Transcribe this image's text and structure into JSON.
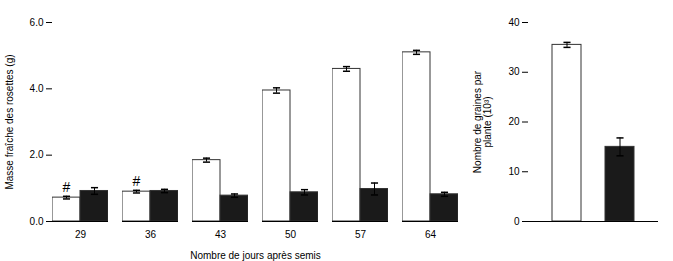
{
  "chart_data": [
    {
      "type": "bar",
      "xlabel": "Nombre de jours après semis",
      "ylabel": "Masse fraîche des rosettes (g)",
      "categories": [
        "29",
        "36",
        "43",
        "50",
        "57",
        "64"
      ],
      "series": [
        {
          "color": "white",
          "values": [
            0.72,
            0.9,
            1.85,
            3.95,
            4.6,
            5.1
          ],
          "errors": [
            0.04,
            0.04,
            0.06,
            0.08,
            0.07,
            0.06
          ]
        },
        {
          "color": "#1a1a1a",
          "values": [
            0.92,
            0.92,
            0.78,
            0.88,
            0.98,
            0.82
          ],
          "errors": [
            0.1,
            0.05,
            0.05,
            0.08,
            0.18,
            0.06
          ]
        }
      ],
      "annotations": [
        {
          "text": "#",
          "x": "29"
        },
        {
          "text": "#",
          "x": "36"
        }
      ],
      "ylim": [
        0,
        6
      ],
      "yticks": [
        0,
        2,
        4,
        6
      ]
    },
    {
      "type": "bar",
      "ylabel": "Nombre de graines par\nplante (10³)",
      "categories": [
        null,
        null
      ],
      "values": [
        35.5,
        15.0
      ],
      "errors": [
        0.5,
        1.8
      ],
      "colors": [
        "white",
        "#1a1a1a"
      ],
      "ylim": [
        0,
        40
      ],
      "yticks": [
        0,
        10,
        20,
        30,
        40
      ],
      "tick_labels": "y"
    }
  ]
}
